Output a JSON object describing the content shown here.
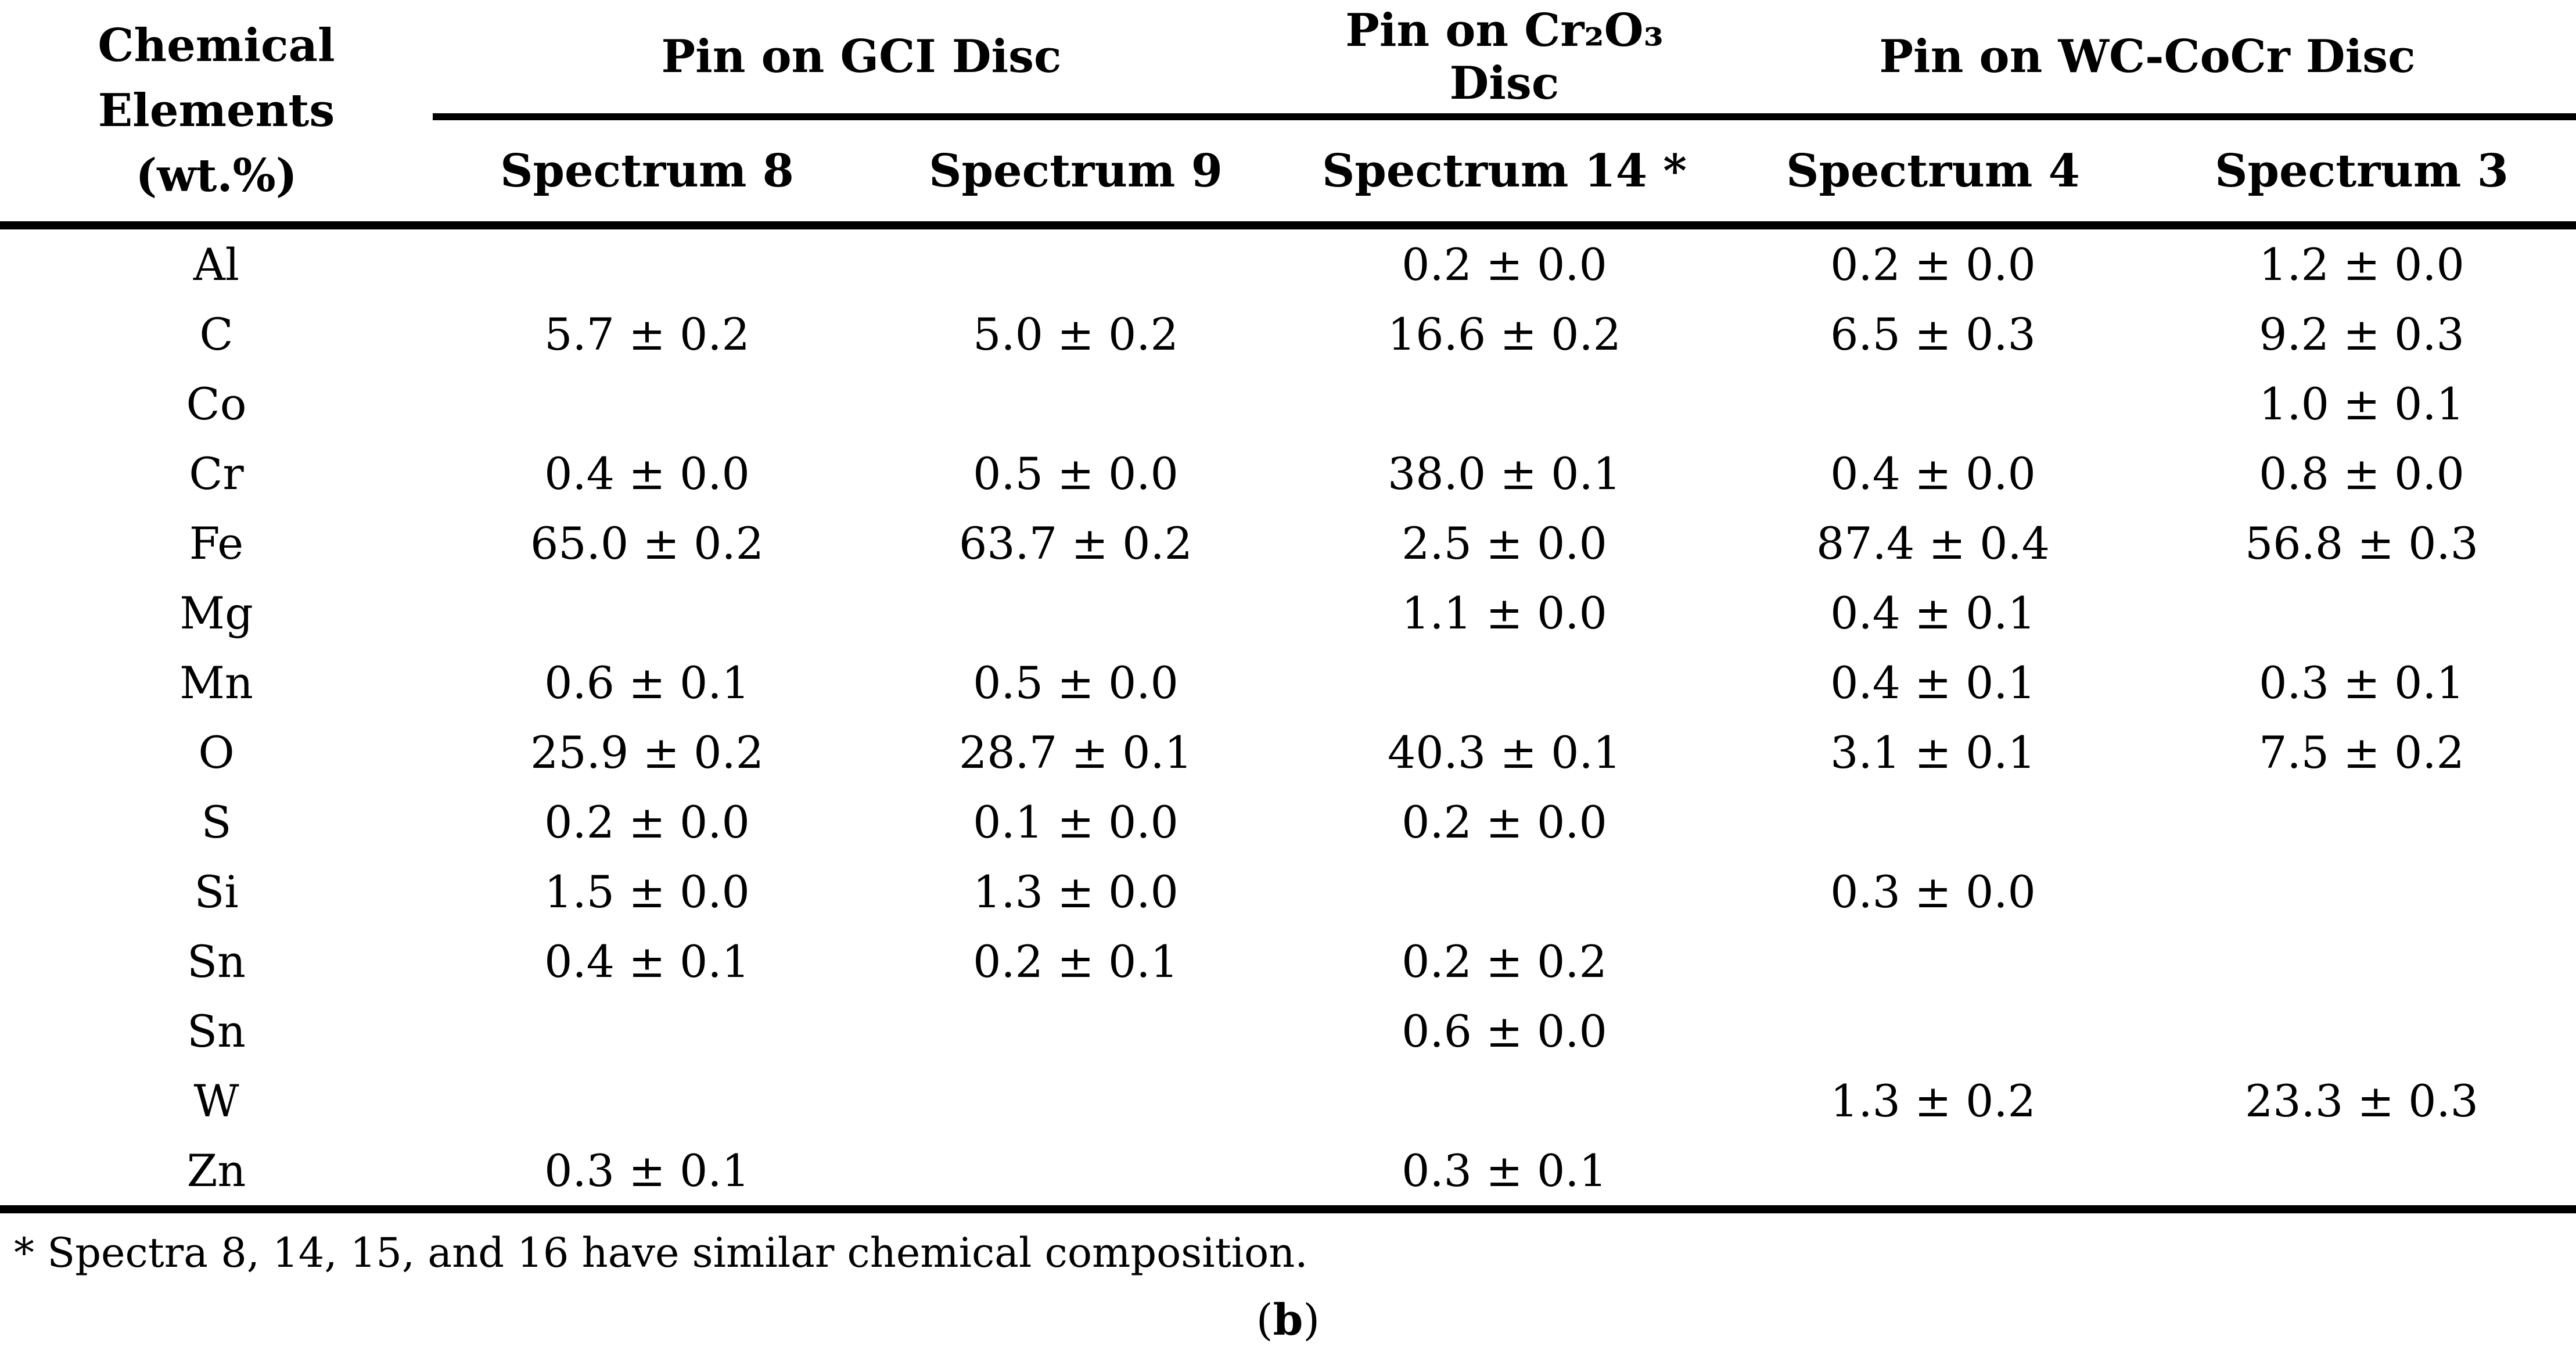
{
  "table": {
    "corner": "Chemical\nElements\n(wt.%)",
    "groups": [
      {
        "label": "Pin on GCI Disc"
      },
      {
        "label": "Pin on Cr₂O₃ Disc"
      },
      {
        "label": "Pin on WC-CoCr Disc"
      }
    ],
    "columns": [
      "Spectrum 8",
      "Spectrum 9",
      "Spectrum 14 *",
      "Spectrum 4",
      "Spectrum 3"
    ],
    "rows": [
      {
        "element": "Al",
        "values": [
          "",
          "",
          "0.2 ± 0.0",
          "0.2 ± 0.0",
          "1.2 ± 0.0"
        ]
      },
      {
        "element": "C",
        "values": [
          "5.7 ± 0.2",
          "5.0 ± 0.2",
          "16.6 ± 0.2",
          "6.5 ± 0.3",
          "9.2 ± 0.3"
        ]
      },
      {
        "element": "Co",
        "values": [
          "",
          "",
          "",
          "",
          "1.0 ± 0.1"
        ]
      },
      {
        "element": "Cr",
        "values": [
          "0.4 ± 0.0",
          "0.5 ± 0.0",
          "38.0 ± 0.1",
          "0.4 ± 0.0",
          "0.8 ± 0.0"
        ]
      },
      {
        "element": "Fe",
        "values": [
          "65.0 ± 0.2",
          "63.7 ± 0.2",
          "2.5 ± 0.0",
          "87.4 ± 0.4",
          "56.8 ± 0.3"
        ]
      },
      {
        "element": "Mg",
        "values": [
          "",
          "",
          "1.1 ± 0.0",
          "0.4 ± 0.1",
          ""
        ]
      },
      {
        "element": "Mn",
        "values": [
          "0.6 ± 0.1",
          "0.5 ± 0.0",
          "",
          "0.4 ± 0.1",
          "0.3 ± 0.1"
        ]
      },
      {
        "element": "O",
        "values": [
          "25.9 ± 0.2",
          "28.7 ± 0.1",
          "40.3 ± 0.1",
          "3.1 ± 0.1",
          "7.5 ± 0.2"
        ]
      },
      {
        "element": "S",
        "values": [
          "0.2 ± 0.0",
          "0.1 ± 0.0",
          "0.2 ± 0.0",
          "",
          ""
        ]
      },
      {
        "element": "Si",
        "values": [
          "1.5 ± 0.0",
          "1.3 ± 0.0",
          "",
          "0.3 ± 0.0",
          ""
        ]
      },
      {
        "element": "Sn",
        "values": [
          "0.4 ± 0.1",
          "0.2 ± 0.1",
          "0.2 ± 0.2",
          "",
          ""
        ]
      },
      {
        "element": "Sn",
        "values": [
          "",
          "",
          "0.6 ± 0.0",
          "",
          ""
        ]
      },
      {
        "element": "W",
        "values": [
          "",
          "",
          "",
          "1.3 ± 0.2",
          "23.3 ± 0.3"
        ]
      },
      {
        "element": "Zn",
        "values": [
          "0.3 ± 0.1",
          "",
          "0.3 ± 0.1",
          "",
          ""
        ]
      }
    ]
  },
  "footnote": "* Spectra 8, 14, 15, and 16 have similar chemical composition.",
  "caption": {
    "open": "(",
    "letter": "b",
    "close": ")"
  }
}
